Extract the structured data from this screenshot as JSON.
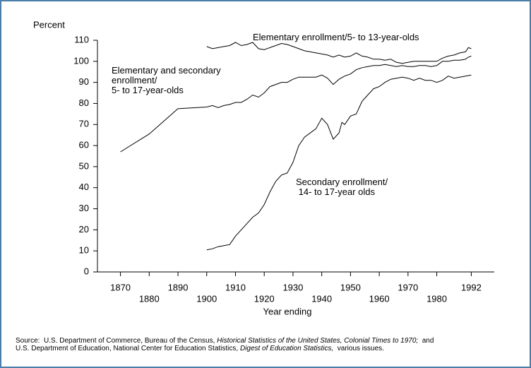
{
  "chart_data": {
    "type": "line",
    "ylabel": "Percent",
    "xlabel": "Year ending",
    "xlim": [
      1862,
      2000
    ],
    "xticks": [
      1870,
      1880,
      1890,
      1900,
      1910,
      1920,
      1930,
      1940,
      1950,
      1960,
      1970,
      1980,
      1992
    ],
    "ylim": [
      0,
      110
    ],
    "yticks": [
      0,
      10,
      20,
      30,
      40,
      50,
      60,
      70,
      80,
      90,
      100,
      110
    ],
    "series": [
      {
        "name": "Elementary enrollment/5- to 13-year-olds",
        "color": "#000000",
        "x": [
          1900,
          1902,
          1904,
          1906,
          1908,
          1910,
          1912,
          1914,
          1916,
          1918,
          1920,
          1922,
          1924,
          1926,
          1928,
          1930,
          1932,
          1934,
          1936,
          1938,
          1940,
          1942,
          1944,
          1946,
          1948,
          1950,
          1952,
          1954,
          1956,
          1958,
          1960,
          1962,
          1964,
          1966,
          1968,
          1970,
          1972,
          1974,
          1976,
          1978,
          1980,
          1982,
          1984,
          1986,
          1988,
          1990,
          1991,
          1992
        ],
        "values": [
          107,
          106,
          106.5,
          107,
          107.5,
          109,
          107.5,
          108,
          109,
          106,
          105.5,
          106.5,
          107.5,
          108.5,
          108,
          107,
          106,
          105,
          104.5,
          104,
          103.5,
          103,
          102,
          103,
          102,
          102.5,
          104,
          102.5,
          102,
          101,
          101,
          100.5,
          101,
          99.5,
          99,
          99.5,
          100,
          100,
          100,
          100,
          100,
          101.5,
          102.5,
          103,
          104,
          104.5,
          106.5,
          106
        ]
      },
      {
        "name": "Elementary and secondary\nenrollment/\n5- to 17-year-olds",
        "color": "#000000",
        "x": [
          1870,
          1880,
          1890,
          1900,
          1902,
          1904,
          1906,
          1908,
          1910,
          1912,
          1914,
          1916,
          1918,
          1920,
          1922,
          1924,
          1926,
          1928,
          1930,
          1932,
          1934,
          1936,
          1938,
          1940,
          1942,
          1944,
          1946,
          1948,
          1950,
          1952,
          1954,
          1956,
          1958,
          1960,
          1962,
          1964,
          1966,
          1968,
          1970,
          1972,
          1974,
          1976,
          1978,
          1980,
          1982,
          1984,
          1986,
          1988,
          1990,
          1991,
          1992
        ],
        "values": [
          57,
          65.5,
          77.5,
          78.3,
          79,
          78,
          79,
          79.5,
          80.5,
          80.5,
          82,
          84,
          83,
          85,
          88,
          89,
          90,
          90,
          91.5,
          92.5,
          92.5,
          92.5,
          92.5,
          93.5,
          92,
          89,
          91.5,
          93,
          94,
          96,
          97,
          97.5,
          98,
          98,
          98.5,
          98,
          97.5,
          98,
          97.5,
          97.5,
          98,
          98,
          97.5,
          98,
          100,
          100,
          100.5,
          100.5,
          101,
          102,
          102.5
        ]
      },
      {
        "name": "Secondary enrollment/\n 14- to 17-year olds",
        "color": "#000000",
        "x": [
          1900,
          1902,
          1904,
          1906,
          1908,
          1910,
          1912,
          1914,
          1916,
          1918,
          1920,
          1922,
          1924,
          1926,
          1928,
          1930,
          1932,
          1934,
          1936,
          1938,
          1940,
          1942,
          1944,
          1946,
          1947,
          1948,
          1950,
          1952,
          1954,
          1956,
          1958,
          1960,
          1962,
          1964,
          1966,
          1968,
          1970,
          1972,
          1974,
          1976,
          1978,
          1980,
          1982,
          1984,
          1986,
          1988,
          1990,
          1992
        ],
        "values": [
          10.5,
          11,
          12,
          12.5,
          13,
          17,
          20,
          23,
          26,
          28,
          32,
          38,
          43,
          46,
          47,
          52,
          60,
          64,
          66,
          68,
          73,
          70,
          63,
          66,
          71,
          70,
          74,
          75,
          81,
          84,
          87,
          88,
          90,
          91.5,
          92,
          92.5,
          92,
          91,
          92,
          91,
          91,
          90,
          91,
          93,
          92,
          92.5,
          93,
          93.5
        ]
      }
    ],
    "source": [
      [
        {
          "text": "Source:  U.S. Department of Commerce, Bureau of the Census, ",
          "italic": false
        },
        {
          "text": "Historical Statistics of the United States, Colonial Times to 1970;",
          "italic": true
        },
        {
          "text": "  and",
          "italic": false
        }
      ],
      [
        {
          "text": "U.S. Department of Education, National Center for Education Statistics, ",
          "italic": false
        },
        {
          "text": "Digest of Education Statistics,",
          "italic": true
        },
        {
          "text": "  various issues.",
          "italic": false
        }
      ]
    ]
  }
}
